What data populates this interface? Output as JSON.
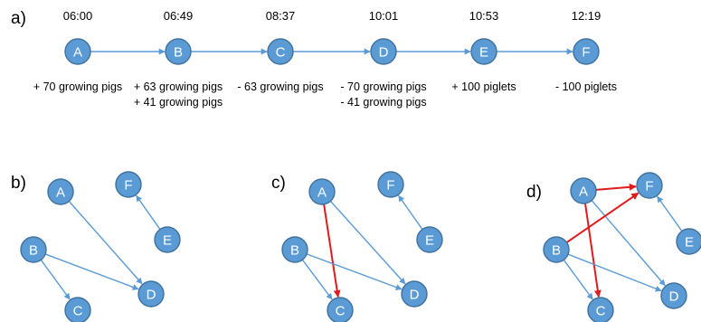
{
  "colors": {
    "node_fill": "#5b9bd5",
    "node_stroke": "#41719c",
    "edge": "#5b9bd5",
    "highlight_edge": "#e31a1c"
  },
  "panels": [
    {
      "label": "a)",
      "nodes": [
        {
          "id": "A",
          "time": "06:00",
          "events": [
            "+ 70 growing pigs"
          ]
        },
        {
          "id": "B",
          "time": "06:49",
          "events": [
            "+ 63 growing pigs",
            "+ 41 growing pigs"
          ]
        },
        {
          "id": "C",
          "time": "08:37",
          "events": [
            "- 63 growing pigs"
          ]
        },
        {
          "id": "D",
          "time": "10:01",
          "events": [
            "- 70 growing pigs",
            "- 41 growing pigs"
          ]
        },
        {
          "id": "E",
          "time": "10:53",
          "events": [
            "+ 100 piglets"
          ]
        },
        {
          "id": "F",
          "time": "12:19",
          "events": [
            "- 100 piglets"
          ]
        }
      ],
      "edges": [
        {
          "from": "A",
          "to": "B"
        },
        {
          "from": "B",
          "to": "C"
        },
        {
          "from": "C",
          "to": "D"
        },
        {
          "from": "D",
          "to": "E"
        },
        {
          "from": "E",
          "to": "F"
        }
      ]
    },
    {
      "label": "b)",
      "nodes": [
        {
          "id": "A"
        },
        {
          "id": "B"
        },
        {
          "id": "C"
        },
        {
          "id": "D"
        },
        {
          "id": "E"
        },
        {
          "id": "F"
        }
      ],
      "edges": [
        {
          "from": "A",
          "to": "D"
        },
        {
          "from": "B",
          "to": "C"
        },
        {
          "from": "B",
          "to": "D"
        },
        {
          "from": "E",
          "to": "F"
        }
      ]
    },
    {
      "label": "c)",
      "nodes": [
        {
          "id": "A"
        },
        {
          "id": "B"
        },
        {
          "id": "C"
        },
        {
          "id": "D"
        },
        {
          "id": "E"
        },
        {
          "id": "F"
        }
      ],
      "edges": [
        {
          "from": "A",
          "to": "D"
        },
        {
          "from": "A",
          "to": "C",
          "highlight": true
        },
        {
          "from": "B",
          "to": "C"
        },
        {
          "from": "B",
          "to": "D"
        },
        {
          "from": "E",
          "to": "F"
        }
      ]
    },
    {
      "label": "d)",
      "nodes": [
        {
          "id": "A"
        },
        {
          "id": "B"
        },
        {
          "id": "C"
        },
        {
          "id": "D"
        },
        {
          "id": "E"
        },
        {
          "id": "F"
        }
      ],
      "edges": [
        {
          "from": "A",
          "to": "D"
        },
        {
          "from": "A",
          "to": "C",
          "highlight": true
        },
        {
          "from": "A",
          "to": "F",
          "highlight": true
        },
        {
          "from": "B",
          "to": "C"
        },
        {
          "from": "B",
          "to": "D"
        },
        {
          "from": "B",
          "to": "F",
          "highlight": true
        },
        {
          "from": "E",
          "to": "F"
        }
      ]
    }
  ]
}
